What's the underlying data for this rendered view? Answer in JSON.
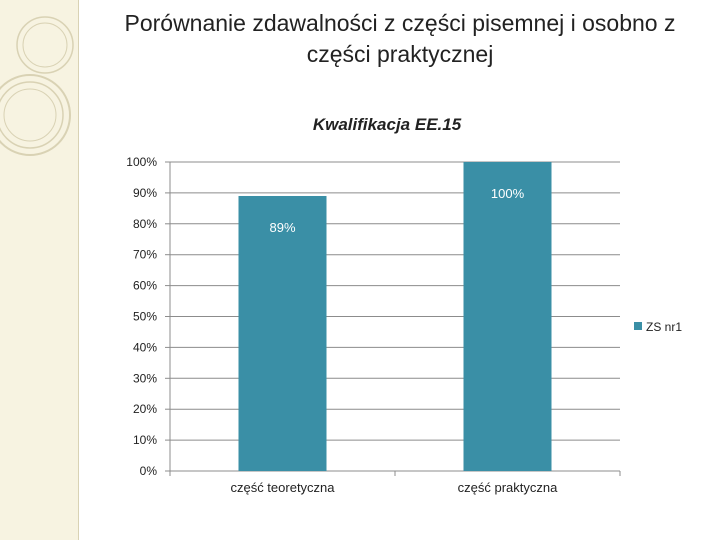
{
  "slide": {
    "title": "Porównanie zdawalności z części pisemnej i osobno z części praktycznej"
  },
  "colors": {
    "bar": "#3a8fa6",
    "grid": "#8c8c8c",
    "axis": "#8c8c8c",
    "text": "#222222",
    "label": "#ffffff",
    "band": "#f7f3e1",
    "circles": "#d9d2b4"
  },
  "chart_data": {
    "type": "bar",
    "title": "Kwalifikacja EE.15",
    "categories": [
      "część teoretyczna",
      "część praktyczna"
    ],
    "series": [
      {
        "name": "ZS nr1",
        "values": [
          89,
          100
        ],
        "labels": [
          "89%",
          "100%"
        ]
      }
    ],
    "ylim": [
      0,
      100
    ],
    "yticks": [
      0,
      10,
      20,
      30,
      40,
      50,
      60,
      70,
      80,
      90,
      100
    ],
    "ytick_labels": [
      "0%",
      "10%",
      "20%",
      "30%",
      "40%",
      "50%",
      "60%",
      "70%",
      "80%",
      "90%",
      "100%"
    ],
    "xlabel": "",
    "ylabel": "",
    "grid": true,
    "legend": "right"
  }
}
